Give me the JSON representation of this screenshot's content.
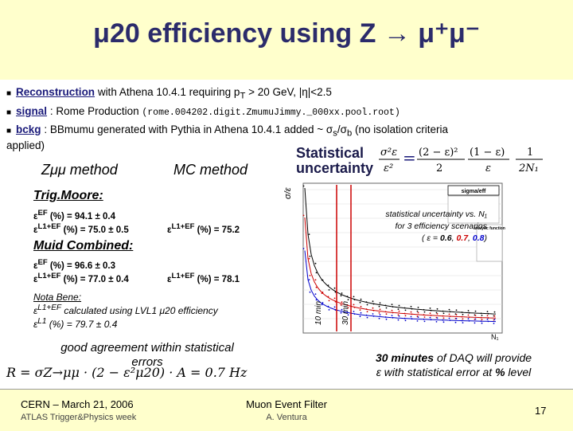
{
  "title": "μ20 efficiency using Z → μ⁺μ⁻",
  "bullets": {
    "b1_link": "Reconstruction",
    "b1_text": " with Athena 10.4.1 requiring p",
    "b1_sub": "T",
    "b1_text2": " > 20 GeV, |η|<2.5",
    "b2_link": "signal",
    "b2_text": " : Rome Production ",
    "b2_code": "(rome.004202.digit.ZmumuJimmy._000xx.pool.root)",
    "b3_link": "bckg",
    "b3_text": " : BBmumu generated with Pythia in Athena 10.4.1 added ~ σ",
    "b3_sub1": "s",
    "b3_mid": "/σ",
    "b3_sub2": "b",
    "b3_tail": " (no isolation criteria",
    "b3_cont": "applied)"
  },
  "methods": {
    "zmm": "Zμμ method",
    "mc": "MC method"
  },
  "stat": {
    "label1": "Statistical",
    "label2": "uncertainty",
    "formula_lhs": "σ²ε/ε²",
    "formula_rhs": "= (2−ε)²/2 · (1−ε)/ε · 1/2N₁"
  },
  "trig_moore": {
    "heading": "Trig.Moore:",
    "row1_label": "ε",
    "row1_sup": "EF",
    "row1_rest": " (%)    = 94.1 ± 0.4",
    "row2_label": "ε",
    "row2_sup": "L1+EF",
    "row2_rest": " (%) = 75.0 ± 0.5",
    "mc_label": "ε",
    "mc_sup": "L1+EF",
    "mc_rest": " (%) = 75.2"
  },
  "muid": {
    "heading": "Muid Combined:",
    "row1_label": "ε",
    "row1_sup": "EF",
    "row1_rest": " (%)    = 96.6 ± 0.3",
    "row2_label": "ε",
    "row2_sup": "L1+EF",
    "row2_rest": " (%) = 77.0 ± 0.4",
    "mc_label": "ε",
    "mc_sup": "L1+EF",
    "mc_rest": " (%) = 78.1"
  },
  "nota": {
    "title": "Nota Bene:",
    "line1_sup": "L1+EF",
    "line1_rest": " calculated using LVL1 μ20 efficiency",
    "line2_sup": "L1",
    "line2_rest": " (%) = 79.7 ± 0.4",
    "eps": "ε"
  },
  "good": {
    "line1": "good agreement within statistical",
    "line2": "errors"
  },
  "ratio_formula": "R = σZ→μμ · (2 − ε²μ20) · A = 0.7 Hz",
  "plot": {
    "yaxis": "σ/ε",
    "box_title": "sigma/eff",
    "analytic_title": "analytic function",
    "caption1": "statistical uncertainty vs. N₁",
    "caption2": "for 3 efficiency scenarios",
    "caption3_pre": "( ε = ",
    "caption_v1": "0.6",
    "caption_sep1": ", ",
    "caption_v2": "0.7",
    "caption_sep2": ", ",
    "caption_v3": "0.8",
    "caption3_post": ")",
    "mark1": "10 min",
    "mark2": "30 min",
    "xaxis": "N₁",
    "colors": {
      "e06": "#000000",
      "e07": "#cc0000",
      "e08": "#0000cc"
    }
  },
  "daq": {
    "pre": "30 minutes",
    "mid": " of DAQ will provide",
    "line2_pre": "ε  with statistical error at ",
    "pct": "%",
    "line2_post": " level"
  },
  "footer": {
    "left1": "CERN – March 21, 2006",
    "left2": "ATLAS Trigger&Physics week",
    "center1": "Muon Event Filter",
    "center2": "A. Ventura",
    "page": "17"
  }
}
